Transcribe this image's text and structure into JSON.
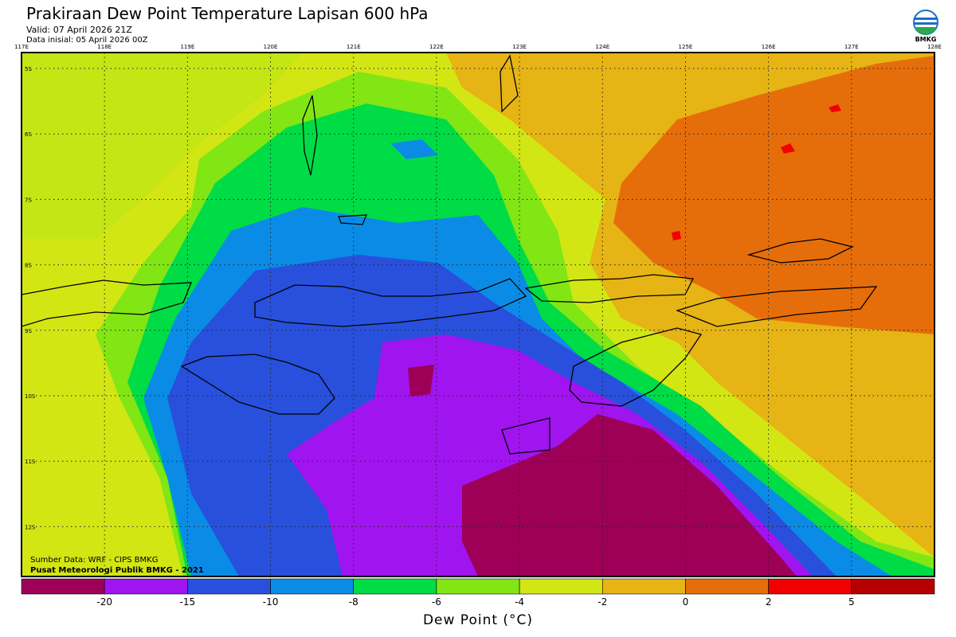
{
  "header": {
    "title": "Prakiraan Dew Point Temperature Lapisan 600 hPa",
    "valid": "Valid: 07 April 2026 21Z",
    "initial": "Data inisial: 05 April 2026 00Z",
    "logo": "BMKG"
  },
  "map": {
    "lon_labels": [
      "117E",
      "118E",
      "119E",
      "120E",
      "121E",
      "122E",
      "123E",
      "124E",
      "125E",
      "126E",
      "127E",
      "128E"
    ],
    "lat_labels": [
      "5S",
      "6S",
      "7S",
      "8S",
      "9S",
      "10S",
      "11S",
      "12S"
    ],
    "source": "Sumber Data: WRF - CIPS BMKG",
    "credit": "Pusat Meteorologi Publik BMKG - 2021"
  },
  "colorbar": {
    "title": "Dew Point (°C)",
    "labels": [
      "-20",
      "-15",
      "-10",
      "-8",
      "-6",
      "-4",
      "-2",
      "0",
      "2",
      "5"
    ],
    "colors": [
      "#9e0058",
      "#a014f0",
      "#2850dc",
      "#0a8ce6",
      "#00dc46",
      "#82e614",
      "#d2e614",
      "#e6b414",
      "#e66e0a",
      "#f00000",
      "#b40000"
    ]
  }
}
